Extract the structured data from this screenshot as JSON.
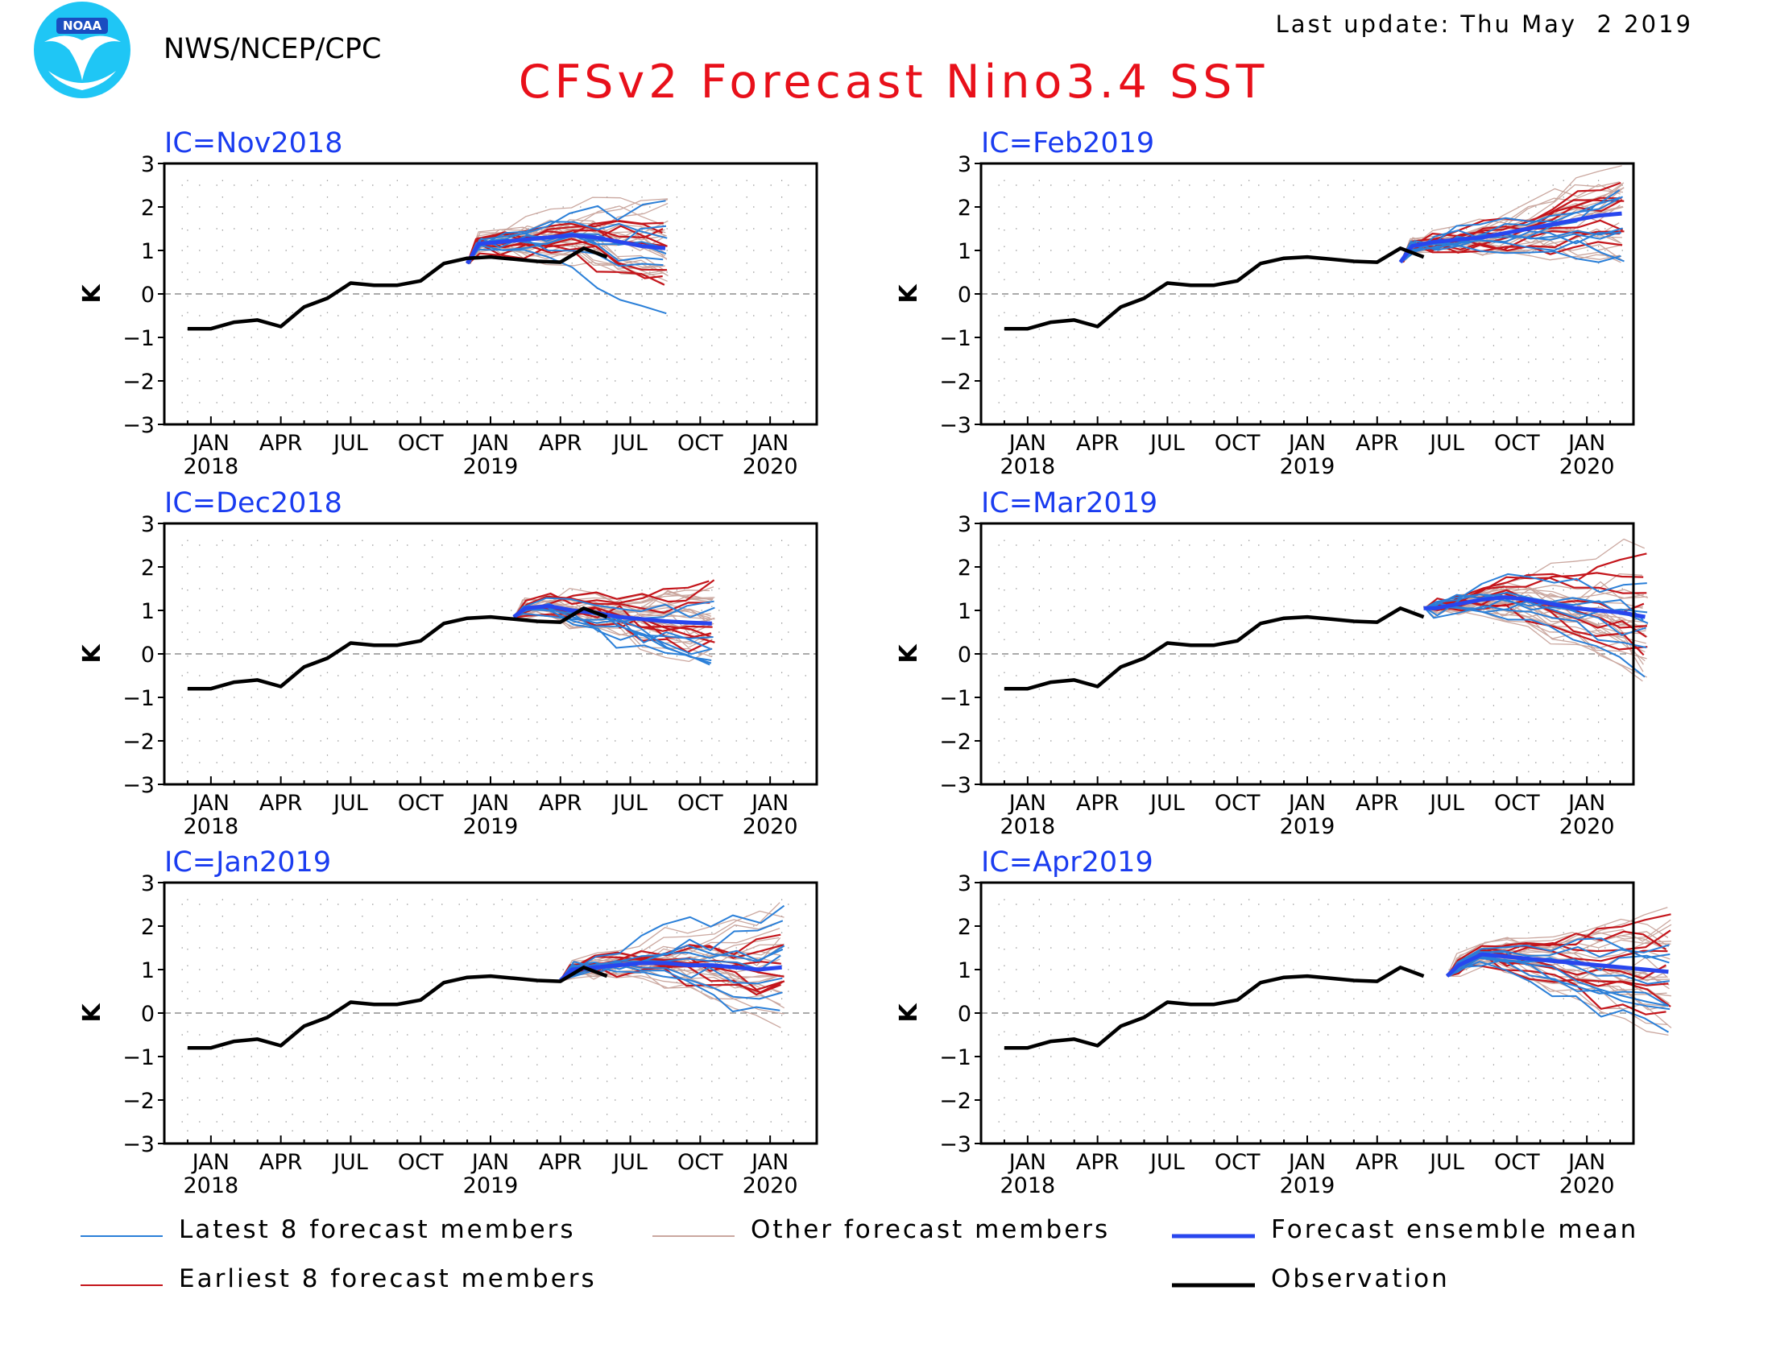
{
  "header": {
    "agency": "NWS/NCEP/CPC",
    "logo_text": "NOAA",
    "last_update": "Last update: Thu May  2 2019",
    "title": "CFSv2 Forecast Nino3.4 SST"
  },
  "colors": {
    "title": "#e8101a",
    "panel_label": "#1a3cf0",
    "latest": "#2a7fd8",
    "earliest": "#c4151b",
    "other": "#caa79f",
    "mean": "#2846ee",
    "observation": "#000000"
  },
  "legend": {
    "latest": "Latest 8 forecast members",
    "other": "Other forecast members",
    "mean": "Forecast ensemble mean",
    "earliest": "Earliest 8 forecast members",
    "observation": "Observation"
  },
  "chart_data": [
    {
      "type": "line",
      "ic": "IC=Nov2018",
      "ylabel": "K",
      "ylim": [
        -3,
        3
      ],
      "yticks": [
        "3",
        "2",
        "1",
        "0",
        "−1",
        "−2",
        "−3"
      ],
      "xticks": [
        {
          "month": "JAN",
          "year": "2018"
        },
        {
          "month": "APR",
          "year": ""
        },
        {
          "month": "JUL",
          "year": ""
        },
        {
          "month": "OCT",
          "year": ""
        },
        {
          "month": "JAN",
          "year": "2019"
        },
        {
          "month": "APR",
          "year": ""
        },
        {
          "month": "JUL",
          "year": ""
        },
        {
          "month": "OCT",
          "year": ""
        },
        {
          "month": "JAN",
          "year": "2020"
        }
      ],
      "observation": [
        -0.8,
        -0.8,
        -0.65,
        -0.6,
        -0.75,
        -0.3,
        -0.1,
        0.25,
        0.2,
        0.2,
        0.3,
        0.7,
        0.82,
        0.85,
        0.8,
        0.75,
        0.73,
        1.05,
        0.85
      ],
      "forecast_start": 11,
      "ensemble_mean": [
        0.85,
        1.15,
        1.2,
        1.25,
        1.3,
        1.35,
        1.3,
        1.2,
        1.1,
        1.05
      ]
    },
    {
      "type": "line",
      "ic": "IC=Feb2019",
      "ylabel": "K",
      "ylim": [
        -3,
        3
      ],
      "yticks": [
        "3",
        "2",
        "1",
        "0",
        "−1",
        "−2",
        "−3"
      ],
      "xticks": [
        {
          "month": "JAN",
          "year": "2018"
        },
        {
          "month": "APR",
          "year": ""
        },
        {
          "month": "JUL",
          "year": ""
        },
        {
          "month": "OCT",
          "year": ""
        },
        {
          "month": "JAN",
          "year": "2019"
        },
        {
          "month": "APR",
          "year": ""
        },
        {
          "month": "JUL",
          "year": ""
        },
        {
          "month": "OCT",
          "year": ""
        },
        {
          "month": "JAN",
          "year": "2020"
        }
      ],
      "observation": [
        -0.8,
        -0.8,
        -0.65,
        -0.6,
        -0.75,
        -0.3,
        -0.1,
        0.25,
        0.2,
        0.2,
        0.3,
        0.7,
        0.82,
        0.85,
        0.8,
        0.75,
        0.73,
        1.05,
        0.85
      ],
      "forecast_start": 16,
      "ensemble_mean": [
        0.75,
        1.1,
        1.2,
        1.25,
        1.3,
        1.4,
        1.5,
        1.6,
        1.7,
        1.8,
        1.85
      ]
    },
    {
      "type": "line",
      "ic": "IC=Dec2018",
      "ylabel": "K",
      "ylim": [
        -3,
        3
      ],
      "yticks": [
        "3",
        "2",
        "1",
        "0",
        "−1",
        "−2",
        "−3"
      ],
      "xticks": [
        {
          "month": "JAN",
          "year": "2018"
        },
        {
          "month": "APR",
          "year": ""
        },
        {
          "month": "JUL",
          "year": ""
        },
        {
          "month": "OCT",
          "year": ""
        },
        {
          "month": "JAN",
          "year": "2019"
        },
        {
          "month": "APR",
          "year": ""
        },
        {
          "month": "JUL",
          "year": ""
        },
        {
          "month": "OCT",
          "year": ""
        },
        {
          "month": "JAN",
          "year": "2020"
        }
      ],
      "observation": [
        -0.8,
        -0.8,
        -0.65,
        -0.6,
        -0.75,
        -0.3,
        -0.1,
        0.25,
        0.2,
        0.2,
        0.3,
        0.7,
        0.82,
        0.85,
        0.8,
        0.75,
        0.73,
        1.05,
        0.85
      ],
      "forecast_start": 13,
      "ensemble_mean": [
        0.85,
        1.05,
        1.1,
        1.0,
        0.95,
        0.85,
        0.8,
        0.75,
        0.72,
        0.7
      ]
    },
    {
      "type": "line",
      "ic": "IC=Mar2019",
      "ylabel": "K",
      "ylim": [
        -3,
        3
      ],
      "yticks": [
        "3",
        "2",
        "1",
        "0",
        "−1",
        "−2",
        "−3"
      ],
      "xticks": [
        {
          "month": "JAN",
          "year": "2018"
        },
        {
          "month": "APR",
          "year": ""
        },
        {
          "month": "JUL",
          "year": ""
        },
        {
          "month": "OCT",
          "year": ""
        },
        {
          "month": "JAN",
          "year": "2019"
        },
        {
          "month": "APR",
          "year": ""
        },
        {
          "month": "JUL",
          "year": ""
        },
        {
          "month": "OCT",
          "year": ""
        },
        {
          "month": "JAN",
          "year": "2020"
        }
      ],
      "observation": [
        -0.8,
        -0.8,
        -0.65,
        -0.6,
        -0.75,
        -0.3,
        -0.1,
        0.25,
        0.2,
        0.2,
        0.3,
        0.7,
        0.82,
        0.85,
        0.8,
        0.75,
        0.73,
        1.05,
        0.85
      ],
      "forecast_start": 17,
      "ensemble_mean": [
        1.0,
        1.05,
        1.15,
        1.25,
        1.3,
        1.25,
        1.15,
        1.05,
        1.0,
        0.95,
        0.85
      ]
    },
    {
      "type": "line",
      "ic": "IC=Jan2019",
      "ylabel": "K",
      "ylim": [
        -3,
        3
      ],
      "yticks": [
        "3",
        "2",
        "1",
        "0",
        "−1",
        "−2",
        "−3"
      ],
      "xticks": [
        {
          "month": "JAN",
          "year": "2018"
        },
        {
          "month": "APR",
          "year": ""
        },
        {
          "month": "JUL",
          "year": ""
        },
        {
          "month": "OCT",
          "year": ""
        },
        {
          "month": "JAN",
          "year": "2019"
        },
        {
          "month": "APR",
          "year": ""
        },
        {
          "month": "JUL",
          "year": ""
        },
        {
          "month": "OCT",
          "year": ""
        },
        {
          "month": "JAN",
          "year": "2020"
        }
      ],
      "observation": [
        -0.8,
        -0.8,
        -0.65,
        -0.6,
        -0.75,
        -0.3,
        -0.1,
        0.25,
        0.2,
        0.2,
        0.3,
        0.7,
        0.82,
        0.85,
        0.8,
        0.75,
        0.73,
        1.05,
        0.85
      ],
      "forecast_start": 15,
      "ensemble_mean": [
        0.75,
        1.0,
        1.05,
        1.1,
        1.15,
        1.15,
        1.1,
        1.1,
        1.05,
        1.0,
        1.05
      ]
    },
    {
      "type": "line",
      "ic": "IC=Apr2019",
      "ylabel": "K",
      "ylim": [
        -3,
        3
      ],
      "yticks": [
        "3",
        "2",
        "1",
        "0",
        "−1",
        "−2",
        "−3"
      ],
      "xticks": [
        {
          "month": "JAN",
          "year": "2018"
        },
        {
          "month": "APR",
          "year": ""
        },
        {
          "month": "JUL",
          "year": ""
        },
        {
          "month": "OCT",
          "year": ""
        },
        {
          "month": "JAN",
          "year": "2019"
        },
        {
          "month": "APR",
          "year": ""
        },
        {
          "month": "JUL",
          "year": ""
        },
        {
          "month": "OCT",
          "year": ""
        },
        {
          "month": "JAN",
          "year": "2020"
        }
      ],
      "observation": [
        -0.8,
        -0.8,
        -0.65,
        -0.6,
        -0.75,
        -0.3,
        -0.1,
        0.25,
        0.2,
        0.2,
        0.3,
        0.7,
        0.82,
        0.85,
        0.8,
        0.75,
        0.73,
        1.05,
        0.85
      ],
      "forecast_start": 18,
      "ensemble_mean": [
        0.85,
        1.1,
        1.35,
        1.3,
        1.25,
        1.2,
        1.15,
        1.1,
        1.05,
        1.0,
        0.95
      ]
    }
  ]
}
